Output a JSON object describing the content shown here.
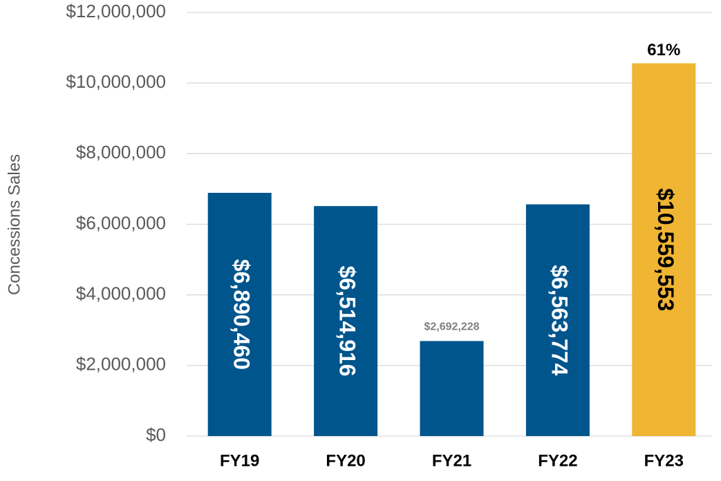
{
  "chart_data": {
    "type": "bar",
    "y_label": "Concessions Sales",
    "categories": [
      "FY19",
      "FY20",
      "FY21",
      "FY22",
      "FY23"
    ],
    "values": [
      6890460,
      6514916,
      2692228,
      6563774,
      10559553
    ],
    "value_labels": [
      "$6,890,460",
      "$6,514,916",
      "$2,692,228",
      "$6,563,774",
      "$10,559,553"
    ],
    "colors": [
      "#00558c",
      "#00558c",
      "#00558c",
      "#00558c",
      "#f0b533"
    ],
    "annotations": [
      {
        "text": "61%",
        "category": "FY23"
      }
    ],
    "ylim": [
      0,
      12000000
    ],
    "yticks": [
      {
        "value": 0,
        "label": "$0"
      },
      {
        "value": 2000000,
        "label": "$2,000,000"
      },
      {
        "value": 4000000,
        "label": "$4,000,000"
      },
      {
        "value": 6000000,
        "label": "$6,000,000"
      },
      {
        "value": 8000000,
        "label": "$8,000,000"
      },
      {
        "value": 10000000,
        "label": "$10,000,000"
      },
      {
        "value": 12000000,
        "label": "$12,000,000"
      }
    ],
    "grid": true
  }
}
